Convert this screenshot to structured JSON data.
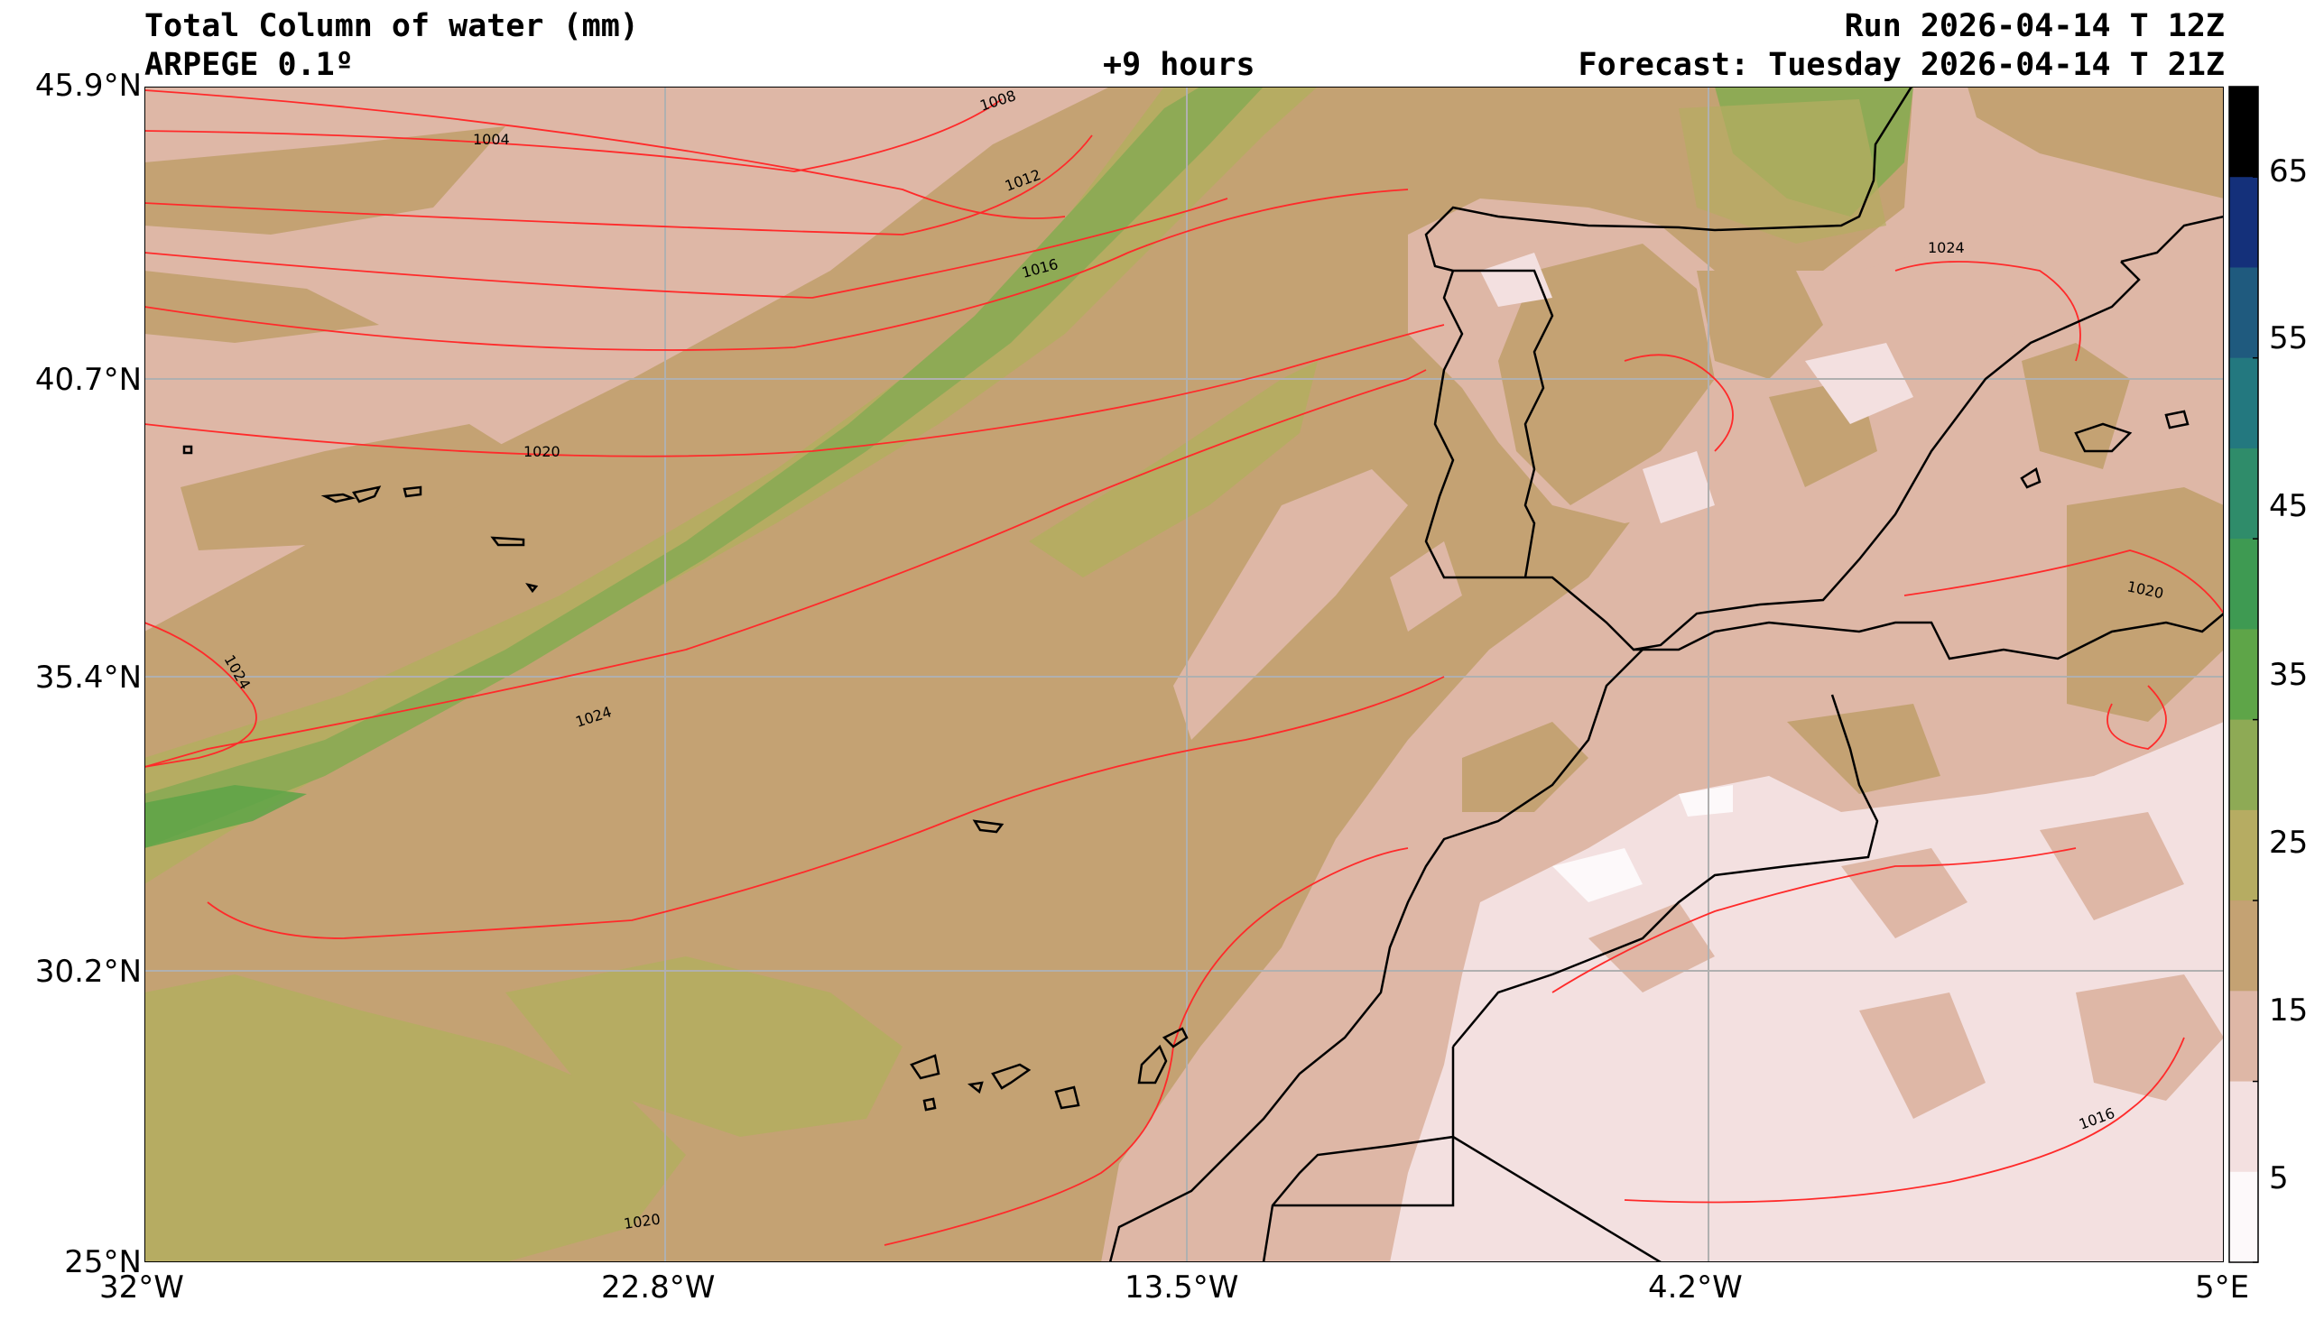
{
  "header": {
    "title": "Total Column of water (mm)",
    "model": "ARPEGE 0.1º",
    "lead": "+9 hours",
    "run": "Run 2026-04-14 T 12Z",
    "forecast": "Forecast: Tuesday 2026-04-14 T 21Z"
  },
  "axes": {
    "lat_ticks": [
      "45.9°N",
      "40.7°N",
      "35.4°N",
      "30.2°N",
      "25°N"
    ],
    "lon_ticks": [
      "32°W",
      "22.8°W",
      "13.5°W",
      "4.2°W",
      "5°E"
    ]
  },
  "colorbar": {
    "ticks": [
      "65",
      "55",
      "45",
      "35",
      "25",
      "15",
      "5"
    ],
    "colors": [
      "#000000",
      "#14307a",
      "#1f5a7e",
      "#23787f",
      "#2f8c6a",
      "#3e9a52",
      "#5ea548",
      "#8eaa55",
      "#b6ac62",
      "#c4a273",
      "#deb7a6",
      "#f3e0e0",
      "#fdf9fa"
    ]
  },
  "isobars": [
    "1004",
    "1008",
    "1012",
    "1016",
    "1020",
    "1024",
    "1024",
    "1024",
    "1020",
    "1016",
    "1020"
  ]
}
